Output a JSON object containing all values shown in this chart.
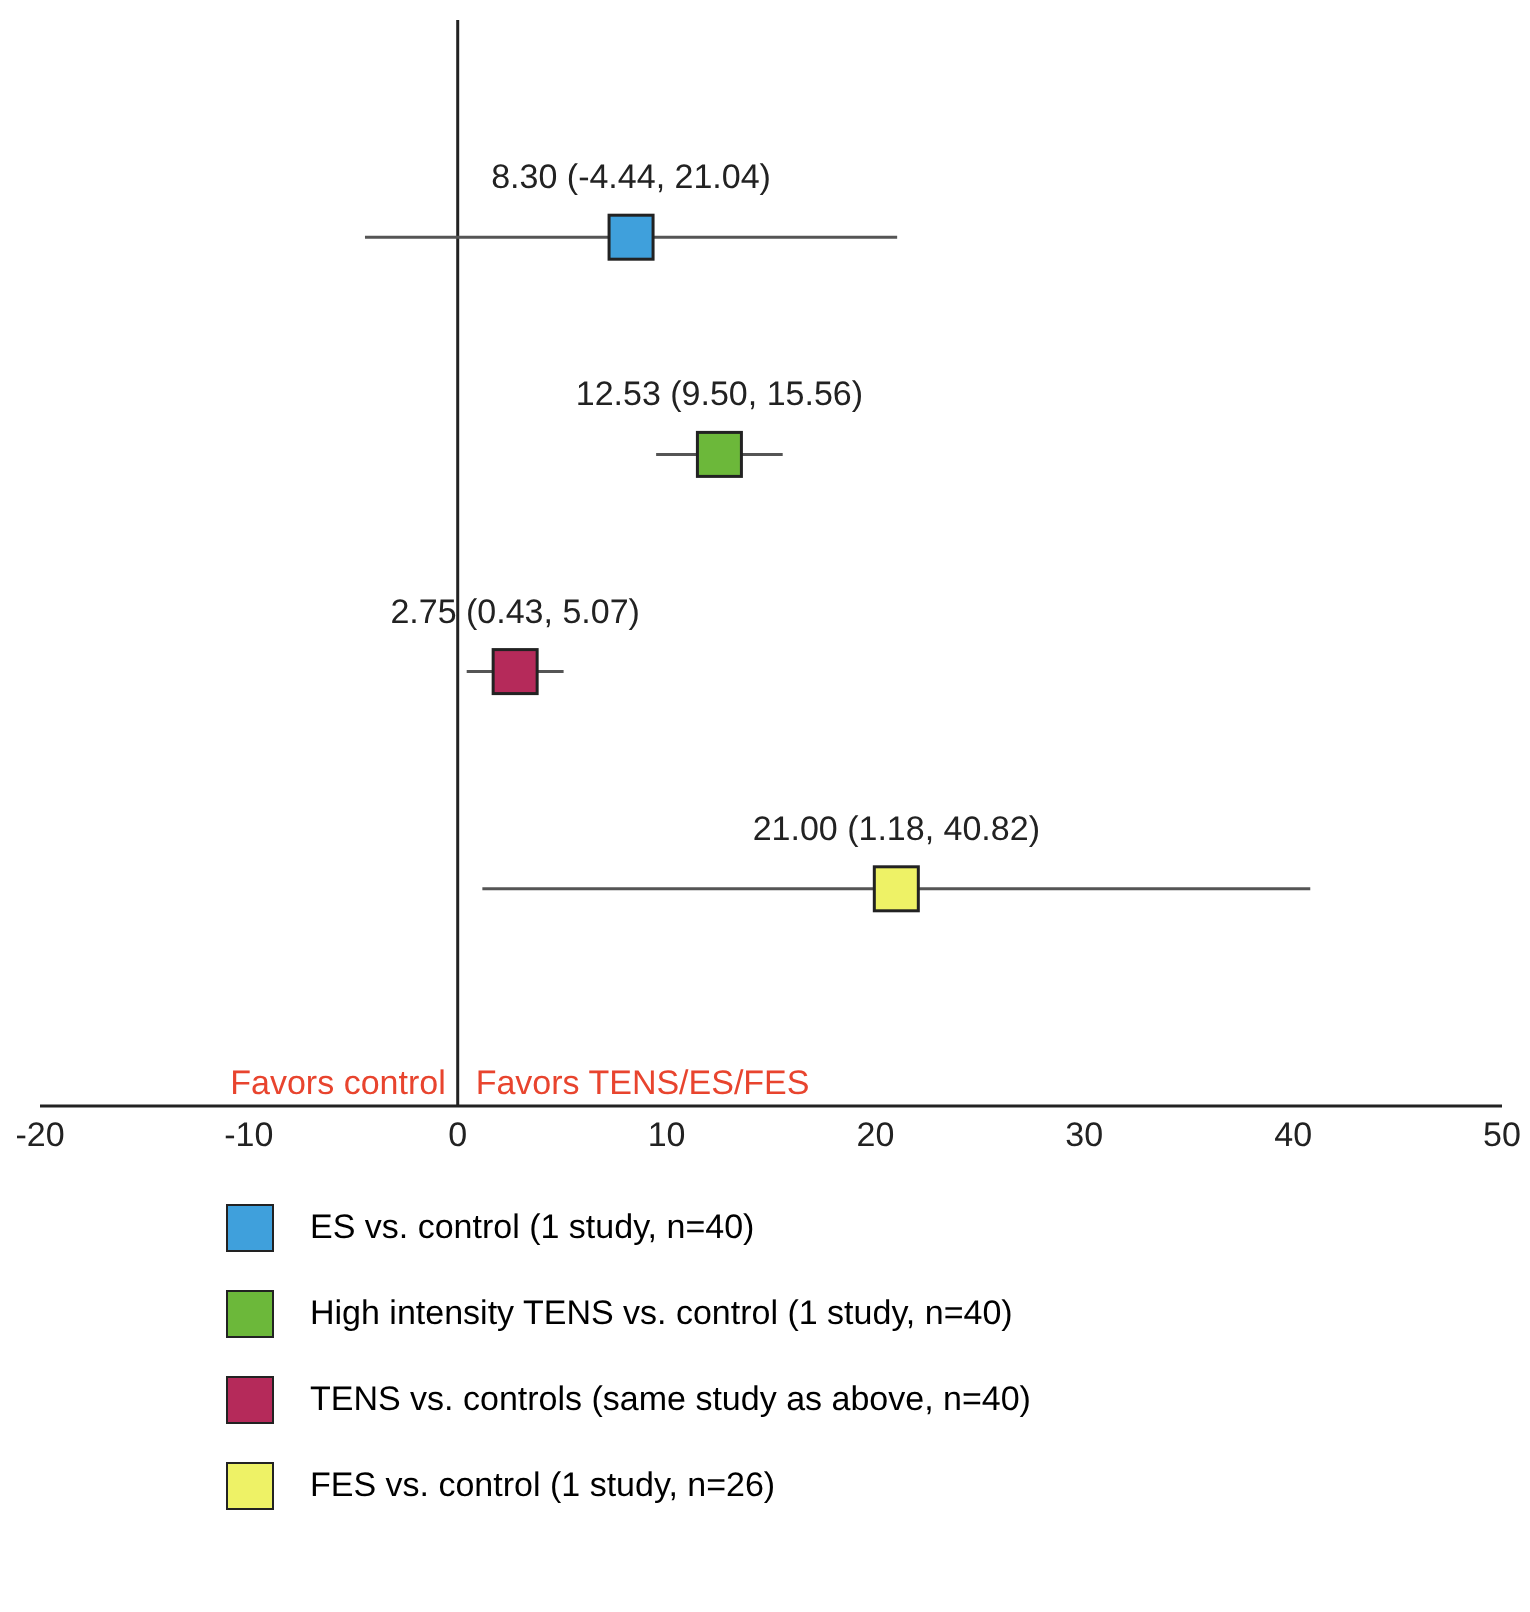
{
  "chart_data": {
    "type": "scatter",
    "orientation": "horizontal",
    "categories": [
      null,
      null,
      null,
      null
    ],
    "series": [
      {
        "name": "ES vs. control (1 study, n=40)",
        "color": "#3fa0dc",
        "values": [
          8.3,
          null,
          null,
          null
        ],
        "errors": [
          [
            -4.44,
            21.04
          ],
          null,
          null,
          null
        ],
        "value_labels": [
          "8.30 (-4.44, 21.04)",
          null,
          null,
          null
        ]
      },
      {
        "name": "High intensity TENS vs. control (1 study, n=40)",
        "color": "#6cb83a",
        "values": [
          null,
          12.53,
          null,
          null
        ],
        "errors": [
          null,
          [
            9.5,
            15.56
          ],
          null,
          null
        ],
        "value_labels": [
          null,
          "12.53 (9.50, 15.56)",
          null,
          null
        ]
      },
      {
        "name": "TENS vs. controls (same study as above, n=40)",
        "color": "#b52a5a",
        "values": [
          null,
          null,
          2.75,
          null
        ],
        "errors": [
          null,
          null,
          [
            0.43,
            5.07
          ],
          null
        ],
        "value_labels": [
          null,
          null,
          "2.75 (0.43, 5.07)",
          null
        ]
      },
      {
        "name": "FES vs. control (1 study, n=26)",
        "color": "#eef266",
        "values": [
          null,
          null,
          null,
          21.0
        ],
        "errors": [
          null,
          null,
          null,
          [
            1.18,
            40.82
          ]
        ],
        "value_labels": [
          null,
          null,
          null,
          "21.00 (1.18, 40.82)"
        ]
      }
    ],
    "xlim": [
      -20,
      50
    ],
    "xticks": [
      -20,
      -10,
      0,
      10,
      20,
      30,
      40,
      50
    ],
    "ref_lines": [
      {
        "axis": "x",
        "value": 0,
        "color": "#222222"
      }
    ],
    "annotations": [
      "Favors control",
      "Favors TENS/ES/FES"
    ],
    "marker": "square",
    "legend": "bottom",
    "grid": false,
    "tick_labels": "x"
  }
}
